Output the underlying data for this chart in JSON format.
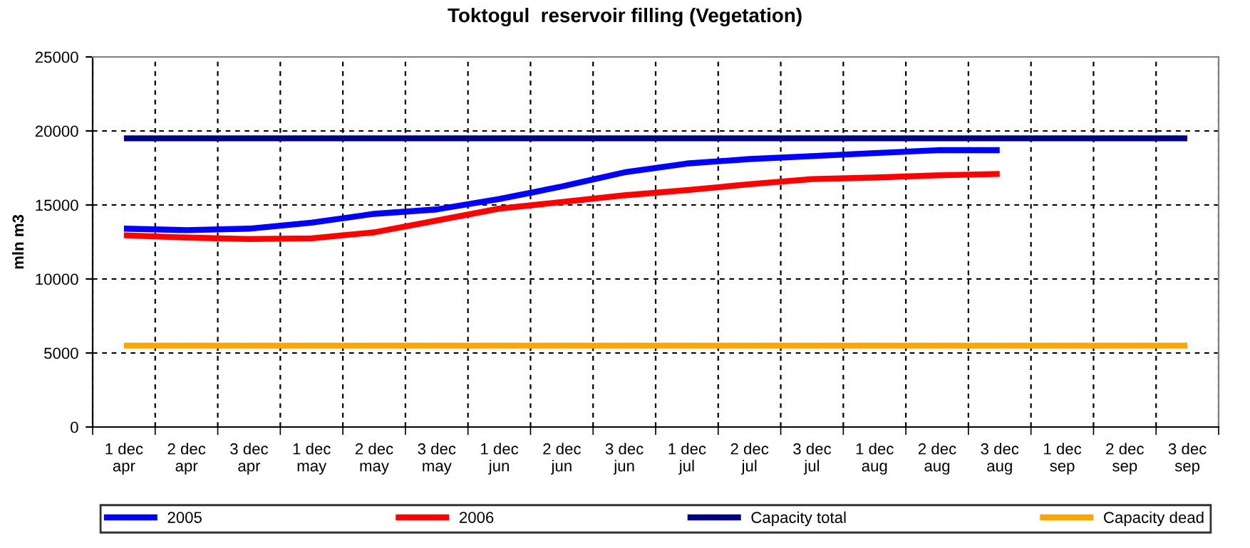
{
  "chart_data": {
    "type": "line",
    "title": "Toktogul  reservoir filling (Vegetation)",
    "ylabel": "mln m3",
    "categories": [
      "1 dec\napr",
      "2 dec\napr",
      "3 dec\napr",
      "1 dec\nmay",
      "2 dec\nmay",
      "3 dec\nmay",
      "1 dec\njun",
      "2 dec\njun",
      "3 dec\njun",
      "1 dec\njul",
      "2 dec\njul",
      "3 dec\njul",
      "1 dec\naug",
      "2 dec\naug",
      "3 dec\naug",
      "1 dec\nsep",
      "2 dec\nsep",
      "3 dec\nsep"
    ],
    "series": [
      {
        "name": "2005",
        "color": "#0000ff",
        "values": [
          13400,
          13300,
          13400,
          13800,
          14400,
          14700,
          15400,
          16250,
          17200,
          17800,
          18100,
          18300,
          18500,
          18700,
          18700,
          null,
          null,
          null
        ]
      },
      {
        "name": "2006",
        "color": "#ff0000",
        "values": [
          12950,
          12800,
          12700,
          12750,
          13150,
          13950,
          14750,
          15200,
          15650,
          16000,
          16400,
          16750,
          16850,
          17000,
          17100,
          null,
          null,
          null
        ]
      },
      {
        "name": "Capacity total",
        "color": "#000080",
        "values": [
          19500,
          19500,
          19500,
          19500,
          19500,
          19500,
          19500,
          19500,
          19500,
          19500,
          19500,
          19500,
          19500,
          19500,
          19500,
          19500,
          19500,
          19500
        ]
      },
      {
        "name": "Capacity dead",
        "color": "#ffa500",
        "values": [
          5500,
          5500,
          5500,
          5500,
          5500,
          5500,
          5500,
          5500,
          5500,
          5500,
          5500,
          5500,
          5500,
          5500,
          5500,
          5500,
          5500,
          5500
        ]
      }
    ],
    "ylim": [
      0,
      25000
    ],
    "yticks": [
      0,
      5000,
      10000,
      15000,
      20000,
      25000
    ],
    "grid": true,
    "legend": "bottom",
    "marker": "none",
    "line_style": "solid"
  }
}
